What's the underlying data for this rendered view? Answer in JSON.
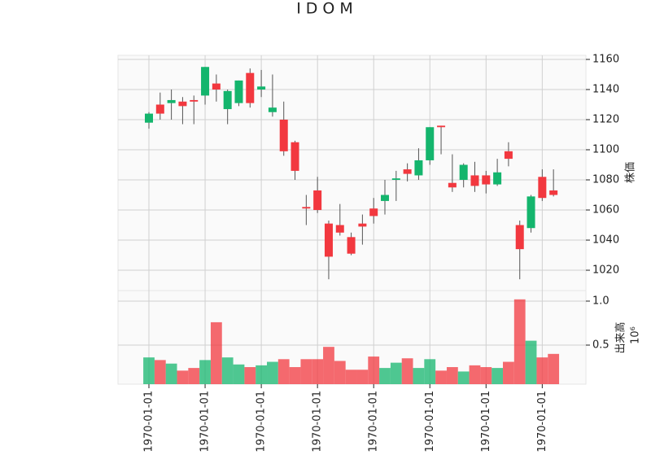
{
  "chart_data": {
    "type": "candlestick",
    "title": "IDOM",
    "categories": [
      "1970-01-01",
      null,
      null,
      null,
      null,
      "1970-01-01",
      null,
      null,
      null,
      null,
      "1970-01-01",
      null,
      null,
      null,
      null,
      "1970-01-01",
      null,
      null,
      null,
      null,
      "1970-01-01",
      null,
      null,
      null,
      null,
      "1970-01-01",
      null,
      null,
      null,
      null,
      "1970-01-01",
      null,
      null,
      null,
      null,
      "1970-01-01",
      null
    ],
    "open": [
      1118,
      1130,
      1131,
      1132,
      1133,
      1136,
      1144,
      1127,
      1131,
      1151,
      1140,
      1125,
      1120,
      1105,
      1062,
      1073,
      1051,
      1050,
      1042,
      1051,
      1061,
      1066,
      1080,
      1087,
      1083,
      1093,
      1116,
      1078,
      1080,
      1083,
      1083,
      1077,
      1099,
      1050,
      1048,
      1082,
      1073
    ],
    "high": [
      1125,
      1138,
      1140,
      1135,
      1136,
      1155,
      1150,
      1140,
      1146,
      1154,
      1153,
      1150,
      1132,
      1106,
      1070,
      1082,
      1053,
      1064,
      1045,
      1057,
      1068,
      1080,
      1086,
      1091,
      1101,
      1115,
      1116,
      1097,
      1091,
      1092,
      1086,
      1094,
      1105,
      1053,
      1070,
      1087,
      1087
    ],
    "low": [
      1114,
      1120,
      1120,
      1117,
      1117,
      1130,
      1132,
      1117,
      1129,
      1128,
      1135,
      1122,
      1096,
      1080,
      1050,
      1058,
      1014,
      1043,
      1030,
      1037,
      1051,
      1057,
      1066,
      1079,
      1080,
      1090,
      1097,
      1072,
      1075,
      1072,
      1071,
      1076,
      1089,
      1014,
      1045,
      1066,
      1069
    ],
    "close": [
      1124,
      1124,
      1133,
      1129,
      1132,
      1155,
      1140,
      1139,
      1146,
      1131,
      1142,
      1128,
      1099,
      1086,
      1061,
      1060,
      1029,
      1045,
      1031,
      1049,
      1056,
      1070,
      1081,
      1084,
      1093,
      1115,
      1115,
      1075,
      1090,
      1076,
      1077,
      1085,
      1094,
      1034,
      1069,
      1068,
      1070
    ],
    "volume": [
      0.36,
      0.33,
      0.29,
      0.21,
      0.24,
      0.33,
      0.76,
      0.36,
      0.28,
      0.25,
      0.27,
      0.31,
      0.34,
      0.25,
      0.34,
      0.34,
      0.48,
      0.32,
      0.22,
      0.22,
      0.37,
      0.24,
      0.3,
      0.35,
      0.24,
      0.34,
      0.21,
      0.25,
      0.2,
      0.27,
      0.25,
      0.24,
      0.31,
      1.02,
      0.55,
      0.36,
      0.4
    ],
    "up_color": "#14b56d",
    "down_color": "#f2383f",
    "ylabel": "株価",
    "ylim": [
      1006.5,
      1162.7
    ],
    "yticks": [
      1020,
      1040,
      1060,
      1080,
      1100,
      1120,
      1140,
      1160
    ],
    "volume_label": "出来高",
    "volume_scale": "10⁶",
    "volume_ylim": [
      0.056,
      1.12
    ],
    "volume_ticks": [
      0.5,
      {
        "value": 1,
        "label": "1.0"
      }
    ],
    "grid": true
  }
}
